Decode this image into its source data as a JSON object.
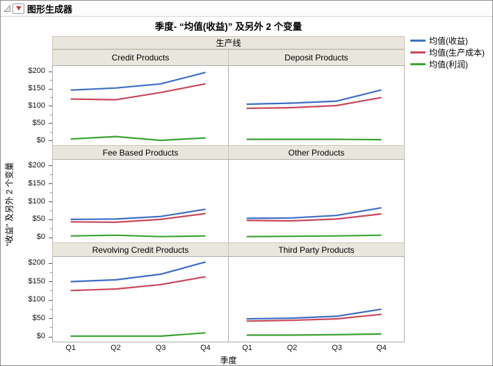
{
  "window": {
    "title": "图形生成器"
  },
  "report": {
    "title": "季度- “均值(收益)” 及另外 2 个变量",
    "x_axis_title": "季度",
    "y_axis_title": "“收益” 及另外 2 个变量",
    "group_label": "生产线"
  },
  "icons": {
    "disclosure": "disclosure-triangle",
    "red_triangle": "red-triangle-menu"
  },
  "legend": {
    "items": [
      {
        "label": "均值(收益)",
        "color": "#3E6DC6"
      },
      {
        "label": "均值(生产成本)",
        "color": "#C9485B"
      },
      {
        "label": "均值(利润)",
        "color": "#3AA432"
      }
    ]
  },
  "chart_data": {
    "type": "line",
    "categories": [
      "Q1",
      "Q2",
      "Q3",
      "Q4"
    ],
    "xlabel": "季度",
    "ylabel": "“收益” 及另外 2 个变量",
    "group_label": "生产线",
    "ylim": [
      -12,
      218
    ],
    "yticks": [
      {
        "v": 0,
        "label": "$0"
      },
      {
        "v": 50,
        "label": "$50"
      },
      {
        "v": 100,
        "label": "$100"
      },
      {
        "v": 150,
        "label": "$150"
      },
      {
        "v": 200,
        "label": "$200"
      }
    ],
    "minor_yticks": [
      25,
      75,
      125,
      175
    ],
    "grid": false,
    "legend_position": "right",
    "series_meta": [
      {
        "name": "均值(收益)",
        "color": "#3E6DC6"
      },
      {
        "name": "均值(生产成本)",
        "color": "#C9485B"
      },
      {
        "name": "均值(利润)",
        "color": "#3AA432"
      }
    ],
    "panels": [
      {
        "title": "Credit Products",
        "series": [
          [
            148,
            154,
            166,
            199
          ],
          [
            122,
            120,
            141,
            166
          ],
          [
            6,
            13,
            2,
            9
          ]
        ]
      },
      {
        "title": "Deposit Products",
        "series": [
          [
            107,
            110,
            116,
            148
          ],
          [
            95,
            97,
            103,
            126
          ],
          [
            5,
            5,
            5,
            4
          ]
        ]
      },
      {
        "title": "Fee Based Products",
        "series": [
          [
            52,
            53,
            60,
            80
          ],
          [
            45,
            44,
            52,
            68
          ],
          [
            6,
            8,
            4,
            6
          ]
        ]
      },
      {
        "title": "Other Products",
        "series": [
          [
            55,
            56,
            63,
            84
          ],
          [
            49,
            48,
            53,
            67
          ],
          [
            4,
            5,
            6,
            8
          ]
        ]
      },
      {
        "title": "Revolving Credit Products",
        "series": [
          [
            151,
            156,
            171,
            204
          ],
          [
            127,
            131,
            143,
            164
          ],
          [
            3,
            3,
            3,
            12
          ]
        ]
      },
      {
        "title": "Third Party Products",
        "series": [
          [
            50,
            52,
            57,
            76
          ],
          [
            44,
            46,
            50,
            62
          ],
          [
            6,
            6,
            7,
            9
          ]
        ]
      }
    ]
  }
}
